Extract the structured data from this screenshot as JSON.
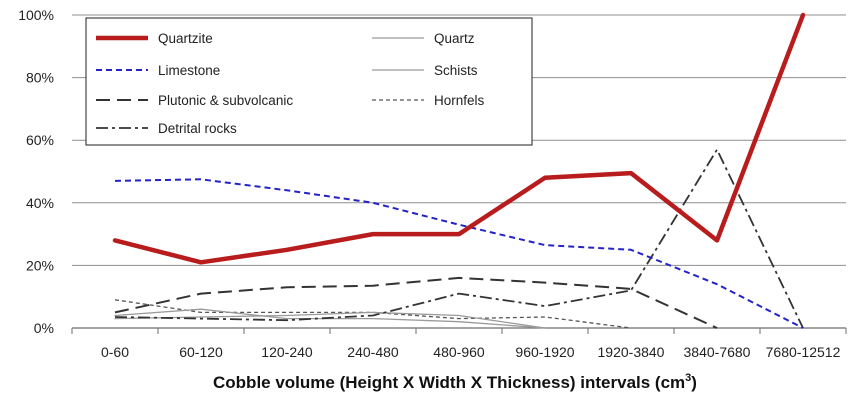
{
  "chart_data": {
    "type": "line",
    "title": "",
    "xlabel": "Cobble volume (Height X Width X Thickness) intervals (cm",
    "xlabel_sup": "3",
    "xlabel_end": ")",
    "ylabel": "",
    "categories": [
      "0-60",
      "60-120",
      "120-240",
      "240-480",
      "480-960",
      "960-1920",
      "1920-3840",
      "3840-7680",
      "7680-12512"
    ],
    "ylim": [
      0,
      100
    ],
    "yticks": [
      0,
      20,
      40,
      60,
      80,
      100
    ],
    "ytick_labels": [
      "0%",
      "20%",
      "40%",
      "60%",
      "80%",
      "100%"
    ],
    "grid": "horizontal",
    "legend_position": "top-left",
    "series": [
      {
        "name": "Quartzite",
        "color": "#b81c1c",
        "style": "solid-thick",
        "values": [
          28,
          21,
          25,
          30,
          30,
          48,
          49.5,
          28,
          100
        ]
      },
      {
        "name": "Limestone",
        "color": "#2323c8",
        "style": "dashed-short",
        "values": [
          47,
          47.5,
          44,
          40,
          33,
          26.5,
          25,
          14,
          0
        ]
      },
      {
        "name": "Plutonic & subvolcanic",
        "color": "#333333",
        "style": "dashed-long",
        "values": [
          5,
          11,
          13,
          13.5,
          16,
          14.5,
          12.5,
          0,
          null
        ]
      },
      {
        "name": "Detrital rocks",
        "color": "#333333",
        "style": "dash-dot",
        "values": [
          3.5,
          3,
          2.5,
          4,
          11,
          7,
          12,
          57,
          0
        ]
      },
      {
        "name": "Quartz",
        "color": "#9a9a9a",
        "style": "solid-thin",
        "values": [
          3,
          3.5,
          4,
          5,
          4,
          0,
          null,
          null,
          null
        ]
      },
      {
        "name": "Schists",
        "color": "#9a9a9a",
        "style": "solid-thin",
        "values": [
          4,
          6,
          3,
          3,
          2,
          0,
          null,
          null,
          null
        ]
      },
      {
        "name": "Hornfels",
        "color": "#555555",
        "style": "dotted",
        "values": [
          9,
          5,
          5,
          5,
          3,
          3.5,
          0,
          null,
          null
        ]
      }
    ]
  }
}
